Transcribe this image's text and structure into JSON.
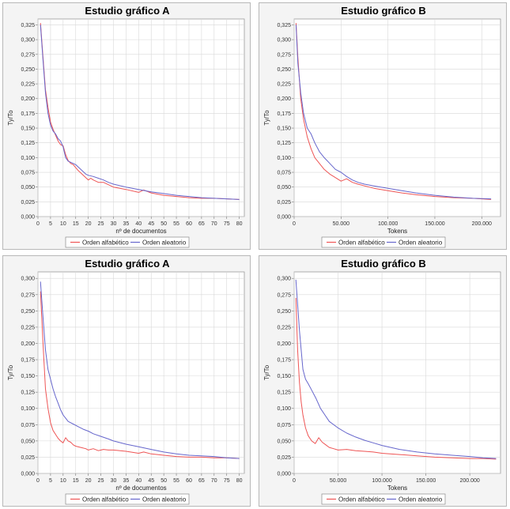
{
  "colors": {
    "alfabetico": "#ee5555",
    "aleatorio": "#6666cc",
    "grid": "#d8d8d8",
    "plot_bg": "#ffffff",
    "panel_bg": "#f4f4f4"
  },
  "chart_data": [
    {
      "type": "line",
      "title": "Estudio gráfico A",
      "xlabel": "nº de documentos",
      "ylabel": "Ty/To",
      "xlim": [
        0,
        82
      ],
      "ylim": [
        0,
        0.335
      ],
      "xticks": [
        0,
        5,
        10,
        15,
        20,
        25,
        30,
        35,
        40,
        45,
        50,
        55,
        60,
        65,
        70,
        75,
        80
      ],
      "xtick_labels": [
        "0",
        "5",
        "10",
        "15",
        "20",
        "25",
        "30",
        "35",
        "40",
        "45",
        "50",
        "55",
        "60",
        "65",
        "70",
        "75",
        "80"
      ],
      "yticks": [
        0,
        0.025,
        0.05,
        0.075,
        0.1,
        0.125,
        0.15,
        0.175,
        0.2,
        0.225,
        0.25,
        0.275,
        0.3,
        0.325
      ],
      "ytick_labels": [
        "0,000",
        "0,025",
        "0,050",
        "0,075",
        "0,100",
        "0,125",
        "0,150",
        "0,175",
        "0,200",
        "0,225",
        "0,250",
        "0,275",
        "0,300",
        "0,325"
      ],
      "series": [
        {
          "name": "Orden alfabético",
          "x": [
            1,
            2,
            3,
            4,
            5,
            6,
            7,
            8,
            9,
            10,
            11,
            12,
            13,
            14,
            15,
            16,
            17,
            18,
            19,
            20,
            21,
            22,
            24,
            26,
            28,
            30,
            35,
            40,
            42,
            45,
            50,
            55,
            60,
            65,
            70,
            75,
            80
          ],
          "y": [
            0.328,
            0.27,
            0.215,
            0.185,
            0.16,
            0.148,
            0.138,
            0.128,
            0.122,
            0.12,
            0.105,
            0.095,
            0.09,
            0.088,
            0.083,
            0.078,
            0.074,
            0.07,
            0.066,
            0.062,
            0.065,
            0.062,
            0.058,
            0.058,
            0.054,
            0.05,
            0.046,
            0.041,
            0.045,
            0.04,
            0.036,
            0.034,
            0.032,
            0.031,
            0.031,
            0.03,
            0.029
          ]
        },
        {
          "name": "Orden aleatorio",
          "x": [
            1,
            2,
            3,
            4,
            5,
            6,
            7,
            8,
            9,
            10,
            11,
            12,
            13,
            14,
            15,
            16,
            17,
            18,
            19,
            20,
            22,
            24,
            26,
            28,
            30,
            35,
            40,
            45,
            50,
            55,
            60,
            65,
            70,
            75,
            80
          ],
          "y": [
            0.325,
            0.265,
            0.21,
            0.175,
            0.155,
            0.145,
            0.14,
            0.132,
            0.128,
            0.118,
            0.1,
            0.094,
            0.092,
            0.09,
            0.088,
            0.084,
            0.08,
            0.076,
            0.072,
            0.07,
            0.068,
            0.065,
            0.062,
            0.058,
            0.055,
            0.05,
            0.046,
            0.042,
            0.039,
            0.036,
            0.034,
            0.032,
            0.031,
            0.03,
            0.029
          ]
        }
      ],
      "legend": "bottom"
    },
    {
      "type": "line",
      "title": "Estudio gráfico B",
      "xlabel": "Tokens",
      "ylabel": "Ty/To",
      "xlim": [
        0,
        220000
      ],
      "ylim": [
        0,
        0.335
      ],
      "xticks": [
        0,
        50000,
        100000,
        150000,
        200000
      ],
      "xtick_labels": [
        "0",
        "50.000",
        "100.000",
        "150.000",
        "200.000"
      ],
      "yticks": [
        0,
        0.025,
        0.05,
        0.075,
        0.1,
        0.125,
        0.15,
        0.175,
        0.2,
        0.225,
        0.25,
        0.275,
        0.3,
        0.325
      ],
      "ytick_labels": [
        "0,000",
        "0,025",
        "0,050",
        "0,075",
        "0,100",
        "0,125",
        "0,150",
        "0,175",
        "0,200",
        "0,225",
        "0,250",
        "0,275",
        "0,300",
        "0,325"
      ],
      "series": [
        {
          "name": "Orden alfabético",
          "x": [
            2000,
            4000,
            7000,
            10000,
            14000,
            18000,
            22000,
            27000,
            32000,
            38000,
            44000,
            50000,
            56000,
            62000,
            68000,
            75000,
            85000,
            100000,
            115000,
            130000,
            150000,
            170000,
            190000,
            210000
          ],
          "y": [
            0.328,
            0.27,
            0.2,
            0.165,
            0.135,
            0.115,
            0.1,
            0.09,
            0.08,
            0.072,
            0.066,
            0.06,
            0.064,
            0.058,
            0.055,
            0.052,
            0.048,
            0.044,
            0.04,
            0.037,
            0.034,
            0.032,
            0.031,
            0.029
          ]
        },
        {
          "name": "Orden aleatorio",
          "x": [
            2000,
            4000,
            7000,
            10000,
            14000,
            18000,
            22000,
            27000,
            32000,
            38000,
            44000,
            50000,
            56000,
            62000,
            68000,
            75000,
            85000,
            100000,
            115000,
            130000,
            150000,
            170000,
            190000,
            210000
          ],
          "y": [
            0.325,
            0.26,
            0.21,
            0.175,
            0.15,
            0.14,
            0.125,
            0.11,
            0.1,
            0.09,
            0.08,
            0.075,
            0.068,
            0.062,
            0.058,
            0.055,
            0.052,
            0.048,
            0.044,
            0.04,
            0.036,
            0.033,
            0.031,
            0.03
          ]
        }
      ],
      "legend": "bottom"
    },
    {
      "type": "line",
      "title": "Estudio gráfico A",
      "xlabel": "nº de documentos",
      "ylabel": "Ty/To",
      "xlim": [
        0,
        82
      ],
      "ylim": [
        0,
        0.31
      ],
      "xticks": [
        0,
        5,
        10,
        15,
        20,
        25,
        30,
        35,
        40,
        45,
        50,
        55,
        60,
        65,
        70,
        75,
        80
      ],
      "xtick_labels": [
        "0",
        "5",
        "10",
        "15",
        "20",
        "25",
        "30",
        "35",
        "40",
        "45",
        "50",
        "55",
        "60",
        "65",
        "70",
        "75",
        "80"
      ],
      "yticks": [
        0,
        0.025,
        0.05,
        0.075,
        0.1,
        0.125,
        0.15,
        0.175,
        0.2,
        0.225,
        0.25,
        0.275,
        0.3
      ],
      "ytick_labels": [
        "0,000",
        "0,025",
        "0,050",
        "0,075",
        "0,100",
        "0,125",
        "0,150",
        "0,175",
        "0,200",
        "0,225",
        "0,250",
        "0,275",
        "0,300"
      ],
      "series": [
        {
          "name": "Orden alfabético",
          "x": [
            1,
            2,
            3,
            4,
            5,
            6,
            7,
            8,
            9,
            10,
            11,
            12,
            13,
            14,
            15,
            17,
            19,
            20,
            22,
            24,
            26,
            28,
            30,
            35,
            40,
            42,
            45,
            50,
            55,
            60,
            65,
            70,
            75,
            80
          ],
          "y": [
            0.28,
            0.2,
            0.13,
            0.1,
            0.078,
            0.066,
            0.06,
            0.054,
            0.05,
            0.047,
            0.055,
            0.05,
            0.048,
            0.044,
            0.042,
            0.04,
            0.038,
            0.036,
            0.038,
            0.035,
            0.037,
            0.036,
            0.036,
            0.034,
            0.031,
            0.033,
            0.03,
            0.028,
            0.026,
            0.025,
            0.025,
            0.024,
            0.024,
            0.023
          ]
        },
        {
          "name": "Orden aleatorio",
          "x": [
            1,
            2,
            3,
            4,
            5,
            6,
            7,
            8,
            9,
            10,
            11,
            12,
            14,
            16,
            18,
            20,
            22,
            25,
            28,
            30,
            35,
            40,
            45,
            50,
            55,
            60,
            65,
            70,
            75,
            80
          ],
          "y": [
            0.295,
            0.24,
            0.19,
            0.16,
            0.145,
            0.13,
            0.118,
            0.108,
            0.098,
            0.09,
            0.085,
            0.08,
            0.076,
            0.072,
            0.068,
            0.065,
            0.061,
            0.057,
            0.053,
            0.05,
            0.045,
            0.041,
            0.037,
            0.033,
            0.03,
            0.028,
            0.027,
            0.026,
            0.024,
            0.023
          ]
        }
      ],
      "legend": "bottom"
    },
    {
      "type": "line",
      "title": "Estudio gráfico B",
      "xlabel": "Tokens",
      "ylabel": "Ty/To",
      "xlim": [
        0,
        235000
      ],
      "ylim": [
        0,
        0.31
      ],
      "xticks": [
        0,
        50000,
        100000,
        150000,
        200000
      ],
      "xtick_labels": [
        "0",
        "50.000",
        "100.000",
        "150.000",
        "200.000"
      ],
      "yticks": [
        0,
        0.025,
        0.05,
        0.075,
        0.1,
        0.125,
        0.15,
        0.175,
        0.2,
        0.225,
        0.25,
        0.275,
        0.3
      ],
      "ytick_labels": [
        "0,000",
        "0,025",
        "0,050",
        "0,075",
        "0,100",
        "0,125",
        "0,150",
        "0,175",
        "0,200",
        "0,225",
        "0,250",
        "0,275",
        "0,300"
      ],
      "series": [
        {
          "name": "Orden alfabético",
          "x": [
            2000,
            4000,
            6000,
            8000,
            10000,
            13000,
            16000,
            20000,
            24000,
            28000,
            32000,
            36000,
            40000,
            45000,
            50000,
            60000,
            70000,
            80000,
            90000,
            100000,
            120000,
            140000,
            160000,
            180000,
            200000,
            215000,
            230000
          ],
          "y": [
            0.27,
            0.19,
            0.14,
            0.11,
            0.09,
            0.07,
            0.058,
            0.05,
            0.046,
            0.055,
            0.048,
            0.044,
            0.04,
            0.038,
            0.036,
            0.037,
            0.035,
            0.034,
            0.033,
            0.031,
            0.029,
            0.027,
            0.025,
            0.024,
            0.023,
            0.023,
            0.022
          ]
        },
        {
          "name": "Orden aleatorio",
          "x": [
            2000,
            4000,
            6000,
            8000,
            10000,
            13000,
            16000,
            20000,
            25000,
            30000,
            35000,
            40000,
            50000,
            60000,
            70000,
            80000,
            90000,
            100000,
            120000,
            140000,
            160000,
            180000,
            200000,
            215000,
            230000
          ],
          "y": [
            0.298,
            0.26,
            0.22,
            0.19,
            0.16,
            0.145,
            0.138,
            0.128,
            0.115,
            0.1,
            0.09,
            0.08,
            0.07,
            0.062,
            0.056,
            0.051,
            0.047,
            0.043,
            0.037,
            0.033,
            0.03,
            0.028,
            0.026,
            0.024,
            0.023
          ]
        }
      ],
      "legend": "bottom"
    }
  ]
}
